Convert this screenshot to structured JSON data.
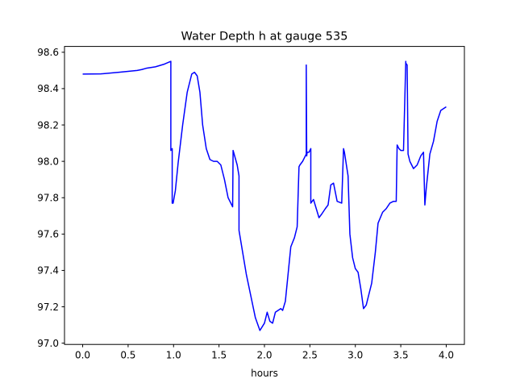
{
  "chart_data": {
    "type": "line",
    "title": "Water Depth h at gauge 535",
    "xlabel": "hours",
    "ylabel": "",
    "xlim": [
      -0.2,
      4.2
    ],
    "ylim": [
      96.993,
      98.632
    ],
    "xticks": [
      0.0,
      0.5,
      1.0,
      1.5,
      2.0,
      2.5,
      3.0,
      3.5,
      4.0
    ],
    "xtick_labels": [
      "0.0",
      "0.5",
      "1.0",
      "1.5",
      "2.0",
      "2.5",
      "3.0",
      "3.5",
      "4.0"
    ],
    "yticks": [
      97.0,
      97.2,
      97.4,
      97.6,
      97.8,
      98.0,
      98.2,
      98.4,
      98.6
    ],
    "ytick_labels": [
      "97.0",
      "97.2",
      "97.4",
      "97.6",
      "97.8",
      "98.0",
      "98.2",
      "98.4",
      "98.6"
    ],
    "grid": false,
    "series": [
      {
        "color": "#0000ff",
        "x": [
          0.0,
          0.2,
          0.4,
          0.6,
          0.65,
          0.7,
          0.8,
          0.9,
          0.97,
          0.97,
          0.985,
          0.985,
          0.995,
          1.02,
          1.05,
          1.1,
          1.15,
          1.2,
          1.23,
          1.26,
          1.29,
          1.32,
          1.36,
          1.4,
          1.44,
          1.48,
          1.52,
          1.56,
          1.6,
          1.65,
          1.655,
          1.7,
          1.72,
          1.72,
          1.76,
          1.8,
          1.85,
          1.9,
          1.95,
          2.0,
          2.03,
          2.06,
          2.09,
          2.12,
          2.15,
          2.18,
          2.2,
          2.23,
          2.26,
          2.29,
          2.33,
          2.36,
          2.38,
          2.39,
          2.42,
          2.46,
          2.46,
          2.465,
          2.47,
          2.49,
          2.51,
          2.51,
          2.54,
          2.57,
          2.6,
          2.63,
          2.67,
          2.7,
          2.73,
          2.76,
          2.8,
          2.85,
          2.87,
          2.88,
          2.92,
          2.94,
          2.94,
          2.97,
          3.0,
          3.03,
          3.06,
          3.09,
          3.12,
          3.15,
          3.18,
          3.22,
          3.25,
          3.3,
          3.34,
          3.38,
          3.42,
          3.45,
          3.46,
          3.48,
          3.5,
          3.53,
          3.555,
          3.555,
          3.57,
          3.58,
          3.58,
          3.6,
          3.64,
          3.68,
          3.72,
          3.75,
          3.765,
          3.765,
          3.78,
          3.82,
          3.86,
          3.9,
          3.94,
          4.0
        ],
        "y": [
          98.48,
          98.481,
          98.49,
          98.5,
          98.505,
          98.512,
          98.52,
          98.535,
          98.55,
          98.06,
          98.07,
          97.77,
          97.77,
          97.84,
          97.99,
          98.2,
          98.38,
          98.48,
          98.49,
          98.47,
          98.38,
          98.2,
          98.07,
          98.01,
          98.0,
          98.0,
          97.98,
          97.9,
          97.8,
          97.75,
          98.06,
          97.98,
          97.92,
          97.62,
          97.5,
          97.38,
          97.26,
          97.14,
          97.07,
          97.11,
          97.17,
          97.12,
          97.11,
          97.17,
          97.18,
          97.19,
          97.18,
          97.23,
          97.38,
          97.53,
          97.58,
          97.64,
          97.97,
          97.98,
          98.0,
          98.04,
          98.53,
          98.03,
          98.05,
          98.05,
          98.07,
          97.77,
          97.79,
          97.74,
          97.69,
          97.71,
          97.74,
          97.76,
          97.87,
          97.88,
          97.78,
          97.77,
          98.07,
          98.05,
          97.92,
          97.6,
          97.6,
          97.47,
          97.41,
          97.39,
          97.3,
          97.19,
          97.21,
          97.27,
          97.33,
          97.5,
          97.66,
          97.72,
          97.74,
          97.77,
          97.78,
          97.78,
          98.09,
          98.07,
          98.06,
          98.06,
          98.55,
          98.54,
          98.53,
          98.04,
          98.04,
          98.0,
          97.96,
          97.98,
          98.03,
          98.05,
          97.76,
          97.76,
          97.85,
          98.04,
          98.11,
          98.22,
          98.28,
          98.3
        ]
      }
    ]
  }
}
